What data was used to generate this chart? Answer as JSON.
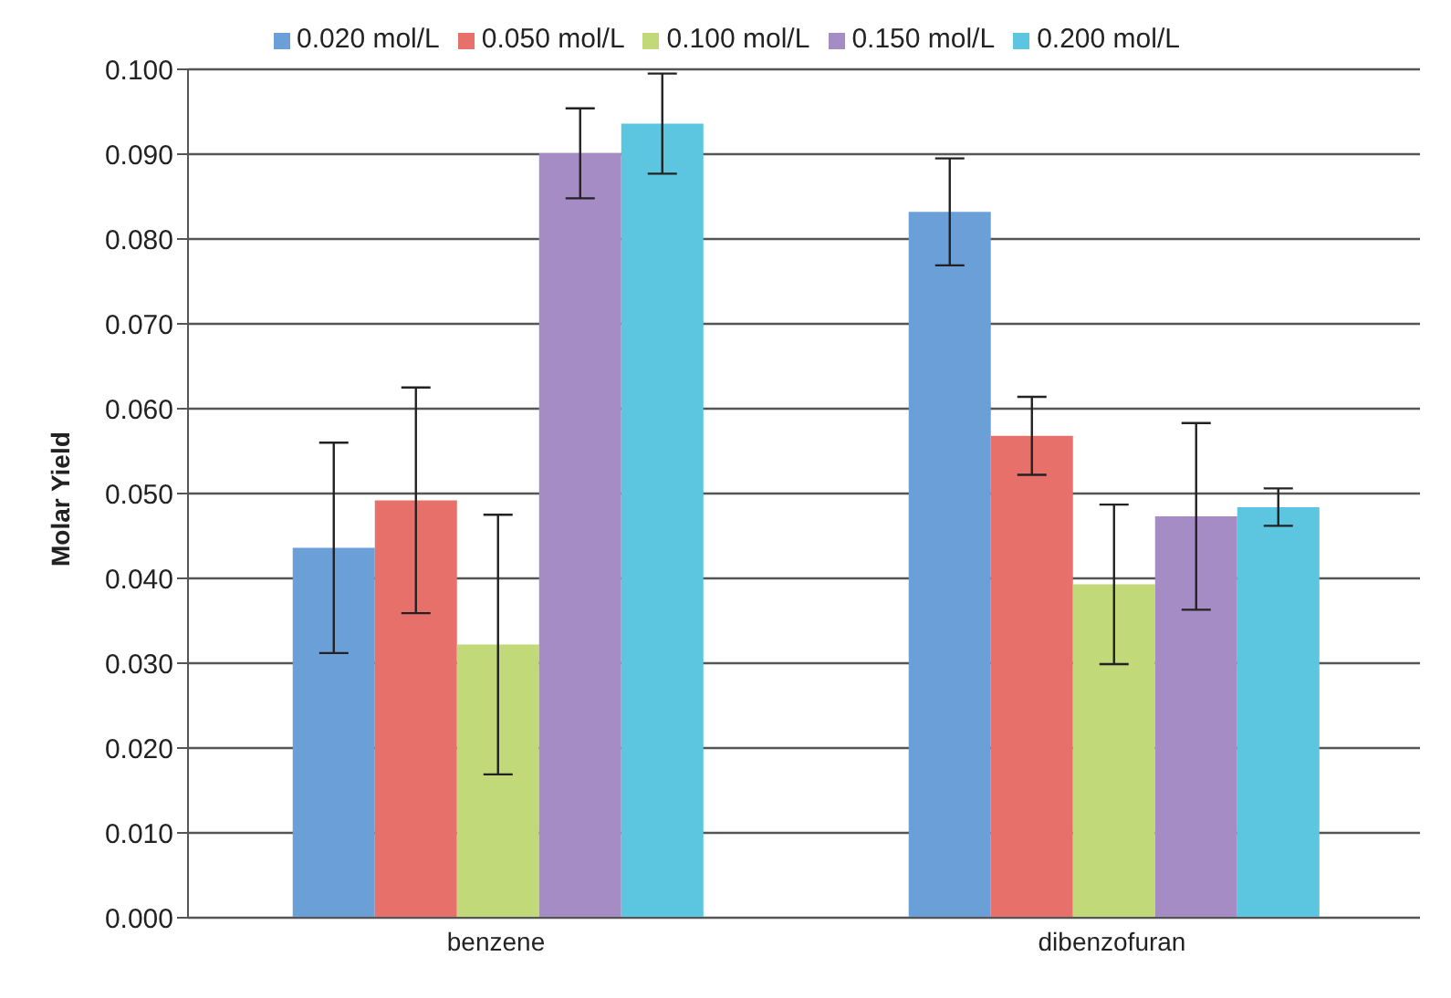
{
  "chart_data": {
    "type": "bar",
    "ylabel": "Molar Yield",
    "categories": [
      "benzene",
      "dibenzofuran"
    ],
    "series": [
      {
        "name": "0.020 mol/L",
        "color": "#6a9fd8",
        "values": [
          0.0436,
          0.0832
        ],
        "errors": [
          0.0124,
          0.0063
        ]
      },
      {
        "name": "0.050 mol/L",
        "color": "#e8706a",
        "values": [
          0.0492,
          0.0568
        ],
        "errors": [
          0.0133,
          0.0046
        ]
      },
      {
        "name": "0.100 mol/L",
        "color": "#c2d97a",
        "values": [
          0.0322,
          0.0393
        ],
        "errors": [
          0.0153,
          0.0094
        ]
      },
      {
        "name": "0.150 mol/L",
        "color": "#a68cc4",
        "values": [
          0.0901,
          0.0473
        ],
        "errors": [
          0.0053,
          0.011
        ]
      },
      {
        "name": "0.200 mol/L",
        "color": "#5cc5e0",
        "values": [
          0.0936,
          0.0484
        ],
        "errors": [
          0.0059,
          0.0022
        ]
      }
    ],
    "ylim": [
      0,
      0.1
    ],
    "yticks": [
      {
        "value": 0,
        "label": "0.000"
      },
      {
        "value": 0.01,
        "label": "0.010"
      },
      {
        "value": 0.02,
        "label": "0.020"
      },
      {
        "value": 0.03,
        "label": "0.030"
      },
      {
        "value": 0.04,
        "label": "0.040"
      },
      {
        "value": 0.05,
        "label": "0.050"
      },
      {
        "value": 0.06,
        "label": "0.060"
      },
      {
        "value": 0.07,
        "label": "0.070"
      },
      {
        "value": 0.08,
        "label": "0.080"
      },
      {
        "value": 0.09,
        "label": "0.090"
      },
      {
        "value": 0.1,
        "label": "0.100"
      }
    ],
    "grid": "y",
    "legend": "top"
  }
}
